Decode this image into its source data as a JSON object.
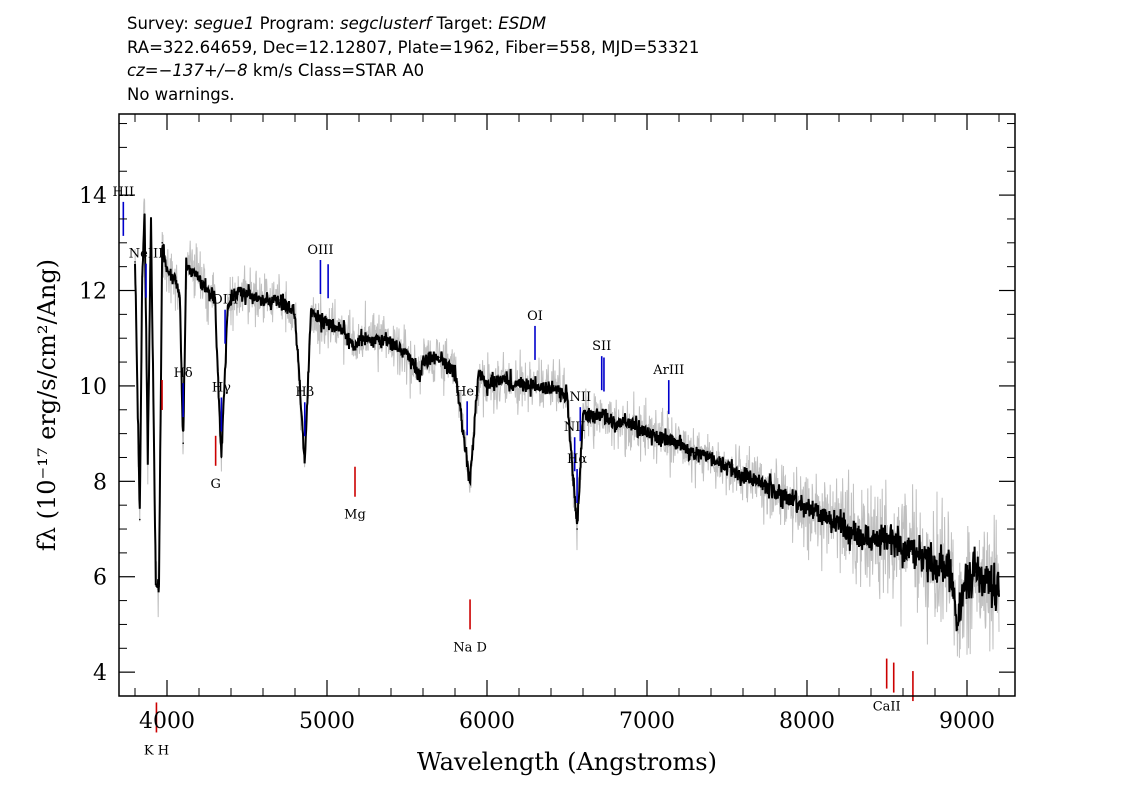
{
  "header": {
    "survey_label": "Survey:",
    "survey": "segue1",
    "program_label": "Program:",
    "program": "segclusterf",
    "target_label": "Target:",
    "target": "ESDM",
    "line2": "RA=322.64659, Dec=12.12807, Plate=1962, Fiber=558, MJD=53321",
    "cz_label": "cz=",
    "cz_value": "−137+/−8",
    "cz_rest": " km/s Class=STAR A0",
    "warnings": "No warnings."
  },
  "colors": {
    "spectrum": "#000000",
    "error_band": "#c0c0c0",
    "emission_line": "#0000cc",
    "absorption_line": "#cc0000",
    "axes": "#000000"
  },
  "chart_data": {
    "type": "line",
    "xlabel": "Wavelength (Angstroms)",
    "ylabel": "fλ (10⁻¹⁷ erg/s/cm²/Ang)",
    "xlim": [
      3700,
      9300
    ],
    "ylim": [
      3.5,
      15.7
    ],
    "x_ticks": [
      4000,
      5000,
      6000,
      7000,
      8000,
      9000
    ],
    "y_ticks": [
      4,
      6,
      8,
      10,
      12,
      14
    ],
    "grid": false,
    "series": [
      {
        "x": [
          3800,
          3830,
          3845,
          3860,
          3880,
          3900,
          3930,
          3950,
          3970,
          4000,
          4050,
          4080,
          4101,
          4120,
          4150,
          4200,
          4250,
          4300,
          4340,
          4380,
          4450,
          4500,
          4600,
          4700,
          4800,
          4861,
          4900,
          5000,
          5100,
          5172,
          5200,
          5300,
          5400,
          5500,
          5577,
          5600,
          5700,
          5800,
          5893,
          5950,
          6000,
          6100,
          6200,
          6300,
          6400,
          6500,
          6563,
          6600,
          6700,
          6800,
          6900,
          7000,
          7100,
          7200,
          7300,
          7400,
          7500,
          7600,
          7700,
          7800,
          7900,
          8000,
          8100,
          8200,
          8300,
          8400,
          8500,
          8600,
          8700,
          8800,
          8850,
          8900,
          8940,
          8980,
          9050,
          9100,
          9150,
          9200
        ],
        "y": [
          12.6,
          7.2,
          12.3,
          13.6,
          8.5,
          13.5,
          5.9,
          5.8,
          13.0,
          12.4,
          12.2,
          11.9,
          8.8,
          12.5,
          12.4,
          12.3,
          12.0,
          11.8,
          8.5,
          11.7,
          12.0,
          11.9,
          11.8,
          11.8,
          11.5,
          8.4,
          11.5,
          11.3,
          11.2,
          10.8,
          11.0,
          11.0,
          10.9,
          10.7,
          10.2,
          10.5,
          10.6,
          10.3,
          8.0,
          10.3,
          10.0,
          10.2,
          10.0,
          10.0,
          10.0,
          9.8,
          7.0,
          9.4,
          9.4,
          9.2,
          9.2,
          9.0,
          8.9,
          8.8,
          8.6,
          8.5,
          8.3,
          8.1,
          8.0,
          7.8,
          7.6,
          7.5,
          7.3,
          7.1,
          6.9,
          6.8,
          6.8,
          6.6,
          6.5,
          6.2,
          6.3,
          6.1,
          4.9,
          5.8,
          6.1,
          6.0,
          5.9,
          5.7
        ]
      }
    ],
    "emission_lines": [
      {
        "label": "HII",
        "x": 3727
      },
      {
        "label": "NeIII",
        "x": 3869
      },
      {
        "label": "Hδ",
        "x": 4101
      },
      {
        "label": "Hγ",
        "x": 4340
      },
      {
        "label": "OIII",
        "x": 4363
      },
      {
        "label": "Hβ",
        "x": 4861
      },
      {
        "label": "OIII",
        "x": 4959
      },
      {
        "label": "OIII",
        "x": 5007
      },
      {
        "label": "HeI",
        "x": 5876
      },
      {
        "label": "OI",
        "x": 6300
      },
      {
        "label": "NII",
        "x": 6548
      },
      {
        "label": "Hα",
        "x": 6563
      },
      {
        "label": "NII",
        "x": 6583
      },
      {
        "label": "SII",
        "x": 6717
      },
      {
        "label": "SII",
        "x": 6731
      },
      {
        "label": "ArIII",
        "x": 7136
      }
    ],
    "absorption_lines": [
      {
        "label": "K",
        "x": 3934
      },
      {
        "label": "H",
        "x": 3969
      },
      {
        "label": "G",
        "x": 4304
      },
      {
        "label": "Mg",
        "x": 5175
      },
      {
        "label": "Na D",
        "x": 5894
      },
      {
        "label": "CaII",
        "x": 8498
      },
      {
        "label": "CaII",
        "x": 8542
      },
      {
        "label": "CaII",
        "x": 8662
      }
    ]
  }
}
